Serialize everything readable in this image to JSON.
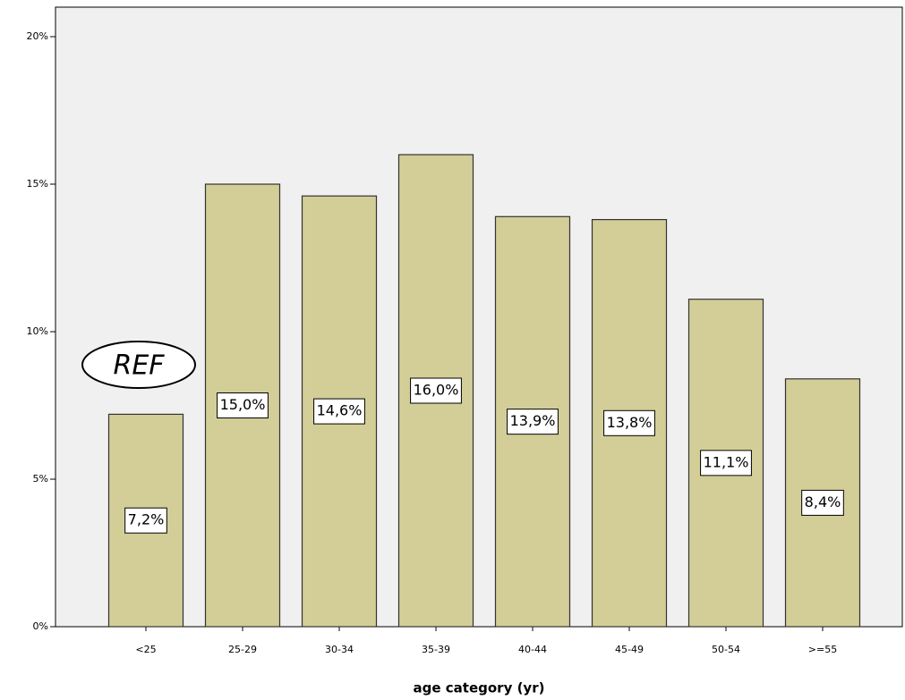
{
  "chart_data": {
    "type": "bar",
    "x_label": "age category (yr)",
    "annotation": "REF",
    "categories": [
      "<25",
      "25-29",
      "30-34",
      "35-39",
      "40-44",
      "45-49",
      "50-54",
      ">=55"
    ],
    "values": [
      7.2,
      15.0,
      14.6,
      16.0,
      13.9,
      13.8,
      11.1,
      8.4
    ],
    "value_labels": [
      "7,2%",
      "15,0%",
      "14,6%",
      "16,0%",
      "13,9%",
      "13,8%",
      "11,1%",
      "8,4%"
    ],
    "color": "#d3ce97",
    "ylim": [
      0,
      21
    ],
    "yticks": [
      {
        "value": 0,
        "label": "0%"
      },
      {
        "value": 5,
        "label": "5%"
      },
      {
        "value": 10,
        "label": "10%"
      },
      {
        "value": 15,
        "label": "15%"
      },
      {
        "value": 20,
        "label": "20%"
      }
    ],
    "grid": false
  }
}
